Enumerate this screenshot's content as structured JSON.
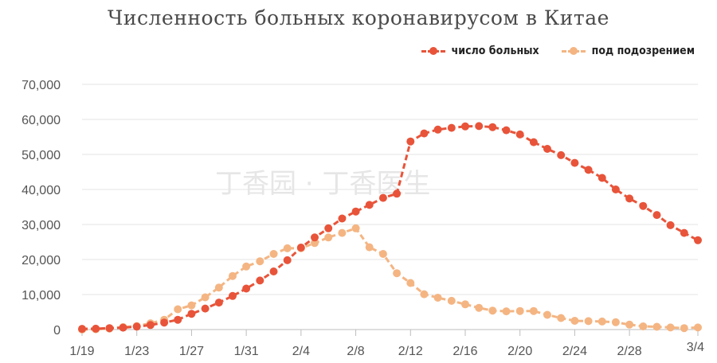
{
  "chart_data": {
    "type": "line",
    "title": "Численность больных коронавирусом в Китае",
    "xlabel": "",
    "ylabel": "",
    "ylim": [
      0,
      70000
    ],
    "yticks": [
      "0",
      "10,000",
      "20,000",
      "30,000",
      "40,000",
      "50,000",
      "60,000",
      "70,000"
    ],
    "xticks": [
      "1/19",
      "1/23",
      "1/27",
      "1/31",
      "2/4",
      "2/8",
      "2/12",
      "2/16",
      "2/20",
      "2/24",
      "2/28",
      "3/4"
    ],
    "x": [
      "1/19",
      "1/20",
      "1/21",
      "1/22",
      "1/23",
      "1/24",
      "1/25",
      "1/26",
      "1/27",
      "1/28",
      "1/29",
      "1/30",
      "1/31",
      "2/1",
      "2/2",
      "2/3",
      "2/4",
      "2/5",
      "2/6",
      "2/7",
      "2/8",
      "2/9",
      "2/10",
      "2/11",
      "2/12",
      "2/13",
      "2/14",
      "2/15",
      "2/16",
      "2/17",
      "2/18",
      "2/19",
      "2/20",
      "2/21",
      "2/22",
      "2/23",
      "2/24",
      "2/25",
      "2/26",
      "2/27",
      "2/28",
      "2/29",
      "3/1",
      "3/2",
      "3/3",
      "3/4"
    ],
    "grid": true,
    "legend": "top-right",
    "series": [
      {
        "name": "число больных",
        "color": "#e8543a",
        "values": [
          200,
          250,
          400,
          550,
          850,
          1300,
          2000,
          2800,
          4500,
          6000,
          7700,
          9600,
          11700,
          14000,
          16600,
          19800,
          23400,
          26300,
          28900,
          31700,
          33700,
          35600,
          37600,
          38800,
          53700,
          56000,
          57100,
          57600,
          58000,
          58100,
          57800,
          56900,
          55700,
          53500,
          51600,
          49800,
          47600,
          45600,
          43300,
          40000,
          37400,
          35300,
          32700,
          29800,
          27600,
          25500
        ]
      },
      {
        "name": "под подозрением",
        "color": "#f4b583",
        "values": [
          0,
          100,
          300,
          700,
          1000,
          1800,
          2800,
          5800,
          6900,
          9200,
          12000,
          15300,
          18000,
          19500,
          21600,
          23200,
          23200,
          24700,
          26300,
          27600,
          28900,
          23500,
          21600,
          16100,
          13300,
          10100,
          9100,
          8200,
          7200,
          6200,
          5400,
          5200,
          5300,
          5300,
          4200,
          3300,
          2500,
          2400,
          2300,
          2100,
          1400,
          900,
          800,
          600,
          400,
          600
        ]
      }
    ],
    "watermark": "丁香园 · 丁香医生"
  }
}
